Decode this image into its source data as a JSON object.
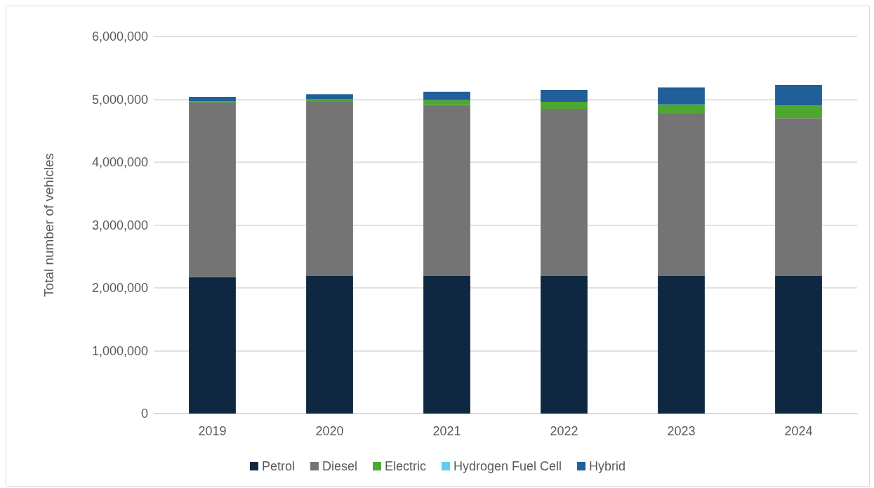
{
  "chart_data": {
    "type": "bar",
    "stacked": true,
    "ylabel": "Total number of vehicles",
    "categories": [
      "2019",
      "2020",
      "2021",
      "2022",
      "2023",
      "2024"
    ],
    "series": [
      {
        "name": "Petrol",
        "color": "#0e2841",
        "values": [
          2170000,
          2190000,
          2190000,
          2190000,
          2190000,
          2190000
        ]
      },
      {
        "name": "Diesel",
        "color": "#747474",
        "values": [
          2780000,
          2770000,
          2720000,
          2660000,
          2580000,
          2510000
        ]
      },
      {
        "name": "Electric",
        "color": "#4ea72e",
        "values": [
          20000,
          40000,
          80000,
          110000,
          150000,
          200000
        ]
      },
      {
        "name": "Hydrogen Fuel Cell",
        "color": "#61cbf3",
        "values": [
          0,
          0,
          0,
          0,
          0,
          0
        ]
      },
      {
        "name": "Hybrid",
        "color": "#215f9a",
        "values": [
          70000,
          80000,
          130000,
          190000,
          270000,
          330000
        ]
      }
    ],
    "ylim": [
      0,
      6000000
    ],
    "yticks": [
      0,
      {
        "value": 1000000,
        "label": "1,000,000"
      },
      {
        "value": 2000000,
        "label": "2,000,000"
      },
      {
        "value": 3000000,
        "label": "3,000,000"
      },
      {
        "value": 4000000,
        "label": "4,000,000"
      },
      {
        "value": 5000000,
        "label": "5,000,000"
      },
      {
        "value": 6000000,
        "label": "6,000,000"
      }
    ],
    "grid": "y",
    "legend": "bottom"
  }
}
